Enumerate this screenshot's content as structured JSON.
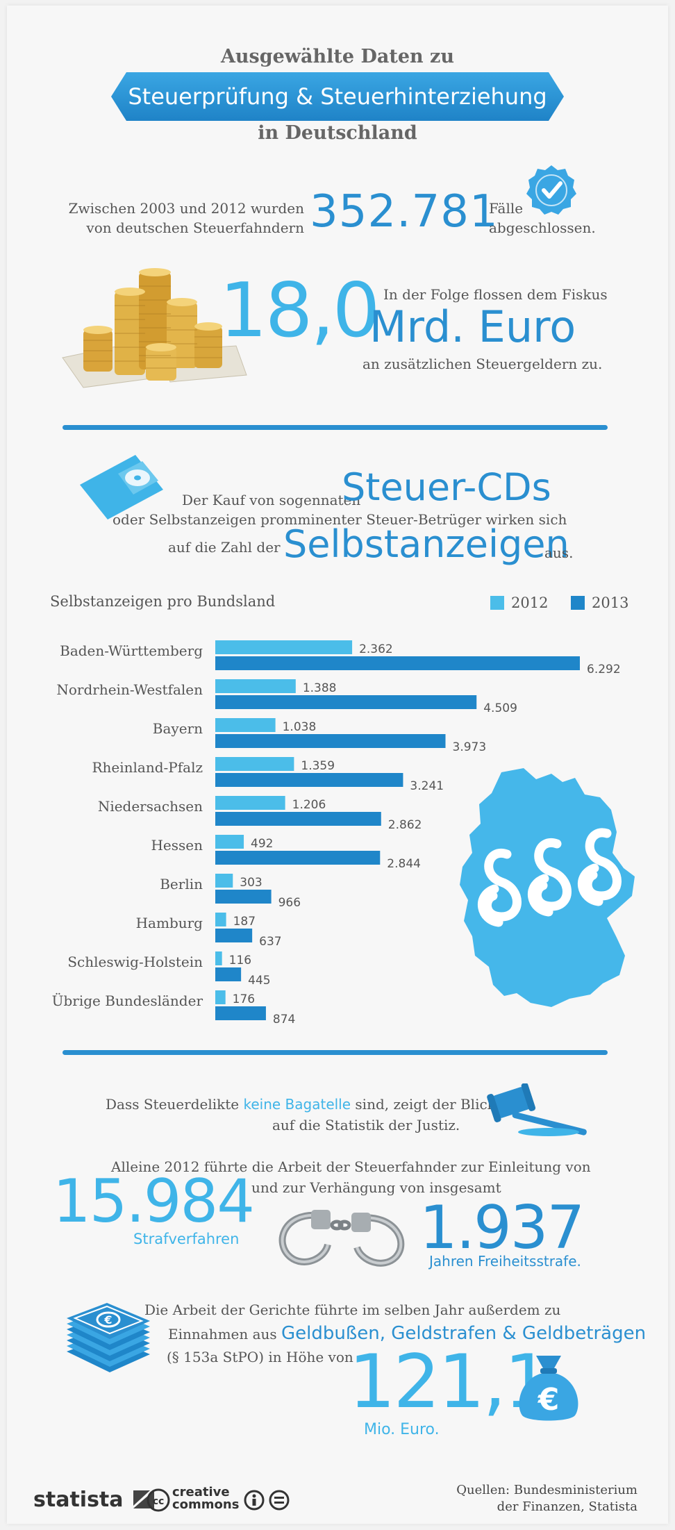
{
  "header": {
    "top": "Ausgewählte Daten zu",
    "ribbon": "Steuerprüfung & Steuerhinterziehung",
    "bottom": "in Deutschland"
  },
  "cases": {
    "pre_line1": "Zwischen 2003 und 2012 wurden",
    "pre_line2": "von deutschen Steuerfahndern",
    "number": "352.781",
    "post_line1": "Fälle",
    "post_line2": "abgeschlossen."
  },
  "revenue": {
    "number": "18,0",
    "line1": "In der Folge flossen dem Fiskus",
    "unit": "Mrd. Euro",
    "line2": "an zusätzlichen Steuergeldern zu."
  },
  "cd_text": {
    "line1a": "Der Kauf von sogennaten",
    "line1b": "Steuer-CDs",
    "line2": "oder Selbstanzeigen promminenter Steuer-Betrüger wirken sich",
    "line3a": "auf die Zahl der",
    "line3b": "Selbstanzeigen",
    "line3c": "aus."
  },
  "chart_data": {
    "type": "bar",
    "orientation": "horizontal",
    "title": "Selbstanzeigen pro Bundsland",
    "categories": [
      "Baden-Württemberg",
      "Nordrhein-Westfalen",
      "Bayern",
      "Rheinland-Pfalz",
      "Niedersachsen",
      "Hessen",
      "Berlin",
      "Hamburg",
      "Schleswig-Holstein",
      "Übrige Bundesländer"
    ],
    "series": [
      {
        "name": "2012",
        "color": "#4bbde9",
        "values": [
          2362,
          1388,
          1038,
          1359,
          1206,
          492,
          303,
          187,
          116,
          176
        ],
        "labels": [
          "2.362",
          "1.388",
          "1.038",
          "1.359",
          "1.206",
          "492",
          "303",
          "187",
          "116",
          "176"
        ]
      },
      {
        "name": "2013",
        "color": "#1f86c9",
        "values": [
          6292,
          4509,
          3973,
          3241,
          2862,
          2844,
          966,
          637,
          445,
          874
        ],
        "labels": [
          "6.292",
          "4.509",
          "3.973",
          "3.241",
          "2.862",
          "2.844",
          "966",
          "637",
          "445",
          "874"
        ]
      }
    ],
    "legend_position": "top-right",
    "grid": false
  },
  "justice": {
    "line1a": "Dass Steuerdelikte",
    "line1b": "keine Bagatelle",
    "line1c": "sind, zeigt der Blick",
    "line2": "auf die Statistik der Justiz.",
    "intro_line1": "Alleine 2012 führte die Arbeit der Steuerfahnder  zur Einleitung von",
    "intro_line2": "und zur Verhängung von insgesamt",
    "proceedings_number": "15.984",
    "proceedings_label": "Strafverfahren",
    "prison_number": "1.937",
    "prison_label": "Jahren Freiheitsstrafe."
  },
  "fines": {
    "line1": "Die Arbeit der Gerichte führte im selben Jahr außerdem zu",
    "line2a": "Einnahmen aus",
    "line2b": "Geldbußen, Geldstrafen & Geldbeträgen",
    "line3": "(§ 153a StPO) in Höhe von",
    "number": "121,1",
    "unit": "Mio. Euro.",
    "bag_symbol": "€",
    "bill_symbol": "€"
  },
  "footer": {
    "logo": "statista",
    "cc_label1": "creative",
    "cc_label2": "commons",
    "source_line1": "Quellen: Bundesministerium",
    "source_line2": "der Finanzen, Statista"
  },
  "colors": {
    "accent": "#2a8fd0",
    "light_accent": "#3fb4e8",
    "series_2012": "#4bbde9",
    "series_2013": "#1f86c9"
  },
  "icons": [
    "check-badge-icon",
    "gold-coins-image",
    "cd-icon",
    "germany-map-paragraph-icon",
    "gavel-icon",
    "handcuffs-image",
    "banknotes-icon",
    "money-bag-icon"
  ]
}
